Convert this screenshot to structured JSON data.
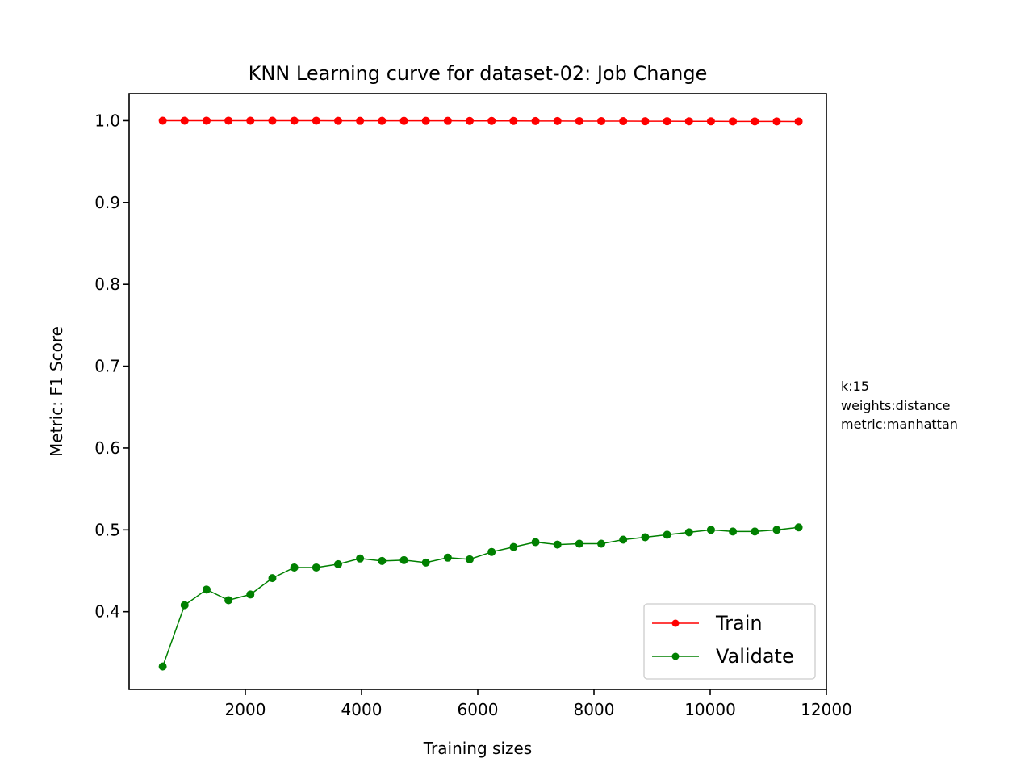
{
  "chart_data": {
    "type": "line",
    "title": "KNN Learning curve for dataset-02: Job Change",
    "xlabel": "Training sizes",
    "ylabel": "Metric: F1 Score",
    "xlim": [
      0,
      12000
    ],
    "ylim": [
      0.305,
      1.033
    ],
    "xticks": [
      2000,
      4000,
      6000,
      8000,
      10000,
      12000
    ],
    "xtick_labels": [
      "2000",
      "4000",
      "6000",
      "8000",
      "10000",
      "12000"
    ],
    "yticks": [
      0.4,
      0.5,
      0.6,
      0.7,
      0.8,
      0.9,
      1.0
    ],
    "ytick_labels": [
      "0.4",
      "0.5",
      "0.6",
      "0.7",
      "0.8",
      "0.9",
      "1.0"
    ],
    "grid": false,
    "legend_position": "bottom-right",
    "annotation": [
      "k:15",
      "weights:distance",
      "metric:manhattan"
    ],
    "x": [
      578,
      955,
      1333,
      1710,
      2087,
      2465,
      2842,
      3220,
      3597,
      3974,
      4352,
      4729,
      5107,
      5484,
      5861,
      6239,
      6616,
      6994,
      7371,
      7748,
      8126,
      8503,
      8881,
      9258,
      9635,
      10013,
      10390,
      10768,
      11145,
      11522
    ],
    "series": [
      {
        "name": "Train",
        "color": "#ff0000",
        "values": [
          1.0,
          1.0,
          1.0,
          1.0,
          1.0,
          1.0,
          1.0,
          1.0,
          0.9998,
          0.9998,
          0.9998,
          0.9998,
          0.9998,
          0.9998,
          0.9997,
          0.9997,
          0.9997,
          0.9996,
          0.9996,
          0.9995,
          0.9995,
          0.9994,
          0.9993,
          0.9993,
          0.9992,
          0.9992,
          0.9991,
          0.9991,
          0.9991,
          0.999
        ]
      },
      {
        "name": "Validate",
        "color": "#008000",
        "values": [
          0.333,
          0.408,
          0.427,
          0.414,
          0.421,
          0.441,
          0.454,
          0.454,
          0.458,
          0.465,
          0.462,
          0.463,
          0.46,
          0.466,
          0.464,
          0.473,
          0.479,
          0.485,
          0.482,
          0.483,
          0.483,
          0.488,
          0.491,
          0.494,
          0.497,
          0.5,
          0.498,
          0.498,
          0.5,
          0.503
        ]
      }
    ]
  }
}
